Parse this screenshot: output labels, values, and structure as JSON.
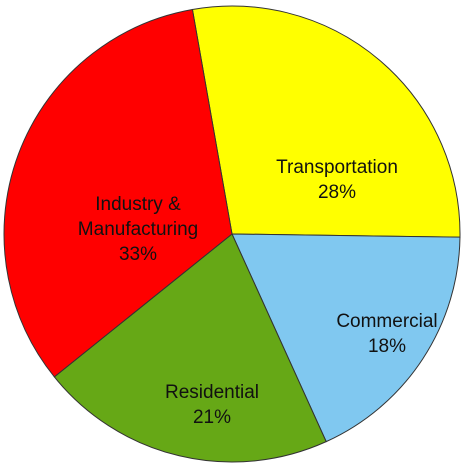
{
  "chart_data": {
    "type": "pie",
    "categories": [
      "Transportation",
      "Commercial",
      "Residential",
      "Industry & Manufacturing"
    ],
    "values": [
      28,
      18,
      21,
      33
    ],
    "value_labels": [
      "28%",
      "18%",
      "21%",
      "33%"
    ],
    "colors": [
      "#ffff00",
      "#80c8f0",
      "#66a816",
      "#ff0000"
    ]
  }
}
